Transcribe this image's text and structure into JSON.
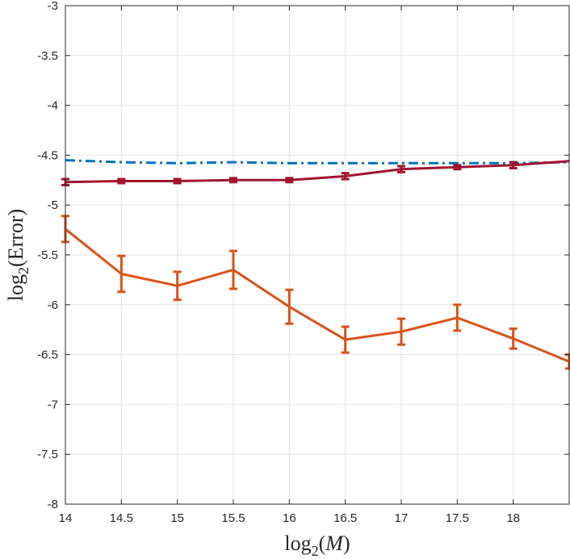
{
  "chart_data": {
    "type": "line",
    "xlabel_main": "log",
    "xlabel_sub": "2",
    "xlabel_arg": "M",
    "ylabel_main": "log",
    "ylabel_sub": "2",
    "ylabel_arg": "Error",
    "xlim": [
      14,
      18.5
    ],
    "ylim": [
      -8,
      -3
    ],
    "xticks": [
      14,
      14.5,
      15,
      15.5,
      16,
      16.5,
      17,
      17.5,
      18
    ],
    "xtick_labels": [
      "14",
      "14.5",
      "15",
      "15.5",
      "16",
      "16.5",
      "17",
      "17.5",
      "18"
    ],
    "yticks": [
      -8,
      -7.5,
      -7,
      -6.5,
      -6,
      -5.5,
      -5,
      -4.5,
      -4,
      -3.5,
      -3
    ],
    "ytick_labels": [
      "-8",
      "-7.5",
      "-7",
      "-6.5",
      "-6",
      "-5.5",
      "-5",
      "-4.5",
      "-4",
      "-3.5",
      "-3"
    ],
    "grid": true,
    "series": [
      {
        "name": "blue-dashdot",
        "color": "#0072BD",
        "style": "dashdot",
        "x": [
          14,
          14.5,
          15,
          15.5,
          16,
          16.5,
          17,
          17.5,
          18,
          18.5
        ],
        "y": [
          -4.55,
          -4.57,
          -4.58,
          -4.57,
          -4.58,
          -4.58,
          -4.58,
          -4.58,
          -4.58,
          -4.57
        ],
        "err": null
      },
      {
        "name": "crimson-solid",
        "color": "#A2142F",
        "style": "solid",
        "x": [
          14,
          14.5,
          15,
          15.5,
          16,
          16.5,
          17,
          17.5,
          18,
          18.5
        ],
        "y": [
          -4.77,
          -4.76,
          -4.76,
          -4.75,
          -4.75,
          -4.71,
          -4.64,
          -4.62,
          -4.6,
          -4.56
        ],
        "err": [
          0.03,
          0.02,
          0.02,
          0.02,
          0.02,
          0.03,
          0.03,
          0.02,
          0.03,
          0.0
        ]
      },
      {
        "name": "orange-solid",
        "color": "#D95319",
        "style": "solid",
        "x": [
          14,
          14.5,
          15,
          15.5,
          16,
          16.5,
          17,
          17.5,
          18,
          18.5
        ],
        "y": [
          -5.24,
          -5.69,
          -5.81,
          -5.65,
          -6.02,
          -6.35,
          -6.27,
          -6.13,
          -6.34,
          -6.57
        ],
        "err": [
          0.13,
          0.18,
          0.14,
          0.19,
          0.17,
          0.13,
          0.13,
          0.13,
          0.1,
          0.07
        ]
      }
    ]
  }
}
